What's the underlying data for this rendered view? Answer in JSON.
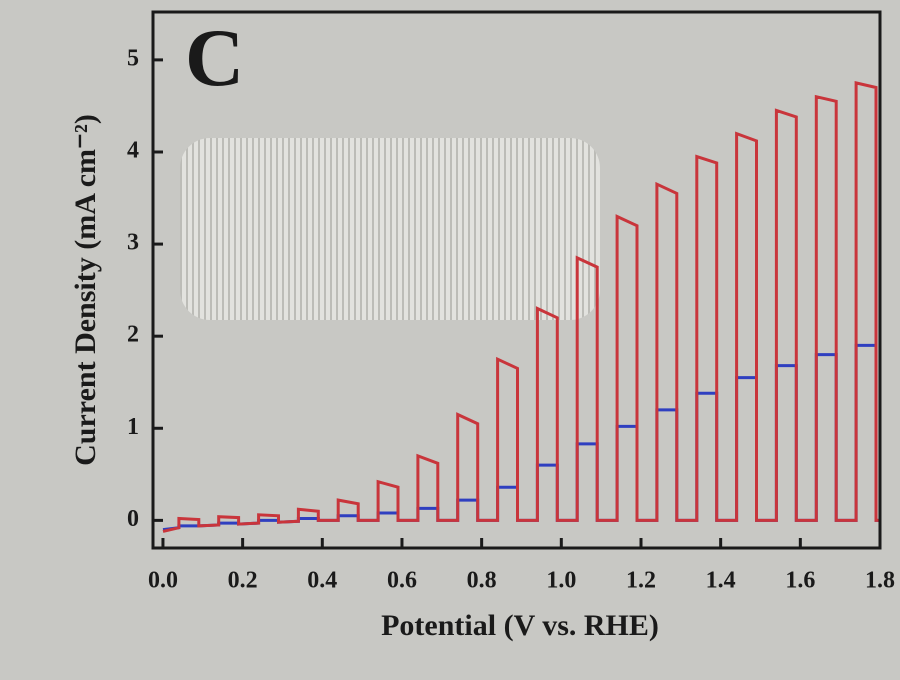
{
  "chart_data": {
    "type": "line",
    "panel_label": "C",
    "xlabel": "Potential  (V vs. RHE)",
    "ylabel": "Current Density (mA cm⁻²)",
    "xlim": [
      -0.025,
      1.8
    ],
    "ylim": [
      -0.3,
      5.52
    ],
    "xticks": [
      {
        "value": 0,
        "label": "0.0"
      },
      0.2,
      0.4,
      0.6,
      0.8,
      {
        "value": 1,
        "label": "1.0"
      },
      1.2,
      1.4,
      1.6,
      1.8
    ],
    "yticks": [
      0,
      1,
      2,
      3,
      4,
      5
    ],
    "x": [
      0,
      0.04,
      0.04,
      0.09,
      0.09,
      0.14,
      0.14,
      0.19,
      0.19,
      0.24,
      0.24,
      0.29,
      0.29,
      0.34,
      0.34,
      0.39,
      0.39,
      0.44,
      0.44,
      0.49,
      0.49,
      0.54,
      0.54,
      0.59,
      0.59,
      0.64,
      0.64,
      0.69,
      0.69,
      0.74,
      0.74,
      0.79,
      0.79,
      0.84,
      0.84,
      0.89,
      0.89,
      0.94,
      0.94,
      0.99,
      0.99,
      1.04,
      1.04,
      1.09,
      1.09,
      1.14,
      1.14,
      1.19,
      1.19,
      1.24,
      1.24,
      1.29,
      1.29,
      1.34,
      1.34,
      1.39,
      1.39,
      1.44,
      1.44,
      1.49,
      1.49,
      1.54,
      1.54,
      1.59,
      1.59,
      1.64,
      1.64,
      1.69,
      1.69,
      1.74,
      1.74,
      1.79,
      1.79,
      1.8
    ],
    "series": [
      {
        "color": "#2f3fc0",
        "values": [
          -0.1,
          -0.08,
          -0.06,
          -0.06,
          -0.06,
          -0.05,
          -0.03,
          -0.03,
          -0.04,
          -0.03,
          0,
          0,
          -0.02,
          -0.01,
          0.02,
          0.02,
          0,
          0,
          0.05,
          0.05,
          0,
          0,
          0.08,
          0.08,
          0,
          0,
          0.13,
          0.13,
          0,
          0,
          0.22,
          0.22,
          0,
          0,
          0.36,
          0.36,
          0,
          0,
          0.6,
          0.6,
          0,
          0,
          0.83,
          0.83,
          0,
          0,
          1.02,
          1.02,
          0,
          0,
          1.2,
          1.2,
          0,
          0,
          1.38,
          1.38,
          0,
          0,
          1.55,
          1.55,
          0,
          0,
          1.68,
          1.68,
          0,
          0,
          1.8,
          1.8,
          0,
          0,
          1.9,
          1.9,
          0,
          0
        ]
      },
      {
        "color": "#c9353b",
        "values": [
          -0.12,
          -0.08,
          0.02,
          0.01,
          -0.06,
          -0.05,
          0.04,
          0.03,
          -0.04,
          -0.03,
          0.06,
          0.05,
          -0.02,
          -0.01,
          0.12,
          0.1,
          0,
          0,
          0.22,
          0.18,
          0,
          0,
          0.42,
          0.36,
          0,
          0,
          0.7,
          0.62,
          0,
          0,
          1.15,
          1.05,
          0,
          0,
          1.75,
          1.65,
          0,
          0,
          2.3,
          2.2,
          0,
          0,
          2.85,
          2.75,
          0,
          0,
          3.3,
          3.2,
          0,
          0,
          3.65,
          3.55,
          0,
          0,
          3.95,
          3.88,
          0,
          0,
          4.2,
          4.12,
          0,
          0,
          4.45,
          4.38,
          0,
          0,
          4.6,
          4.55,
          0,
          0,
          4.75,
          4.7,
          0,
          0
        ]
      }
    ]
  }
}
